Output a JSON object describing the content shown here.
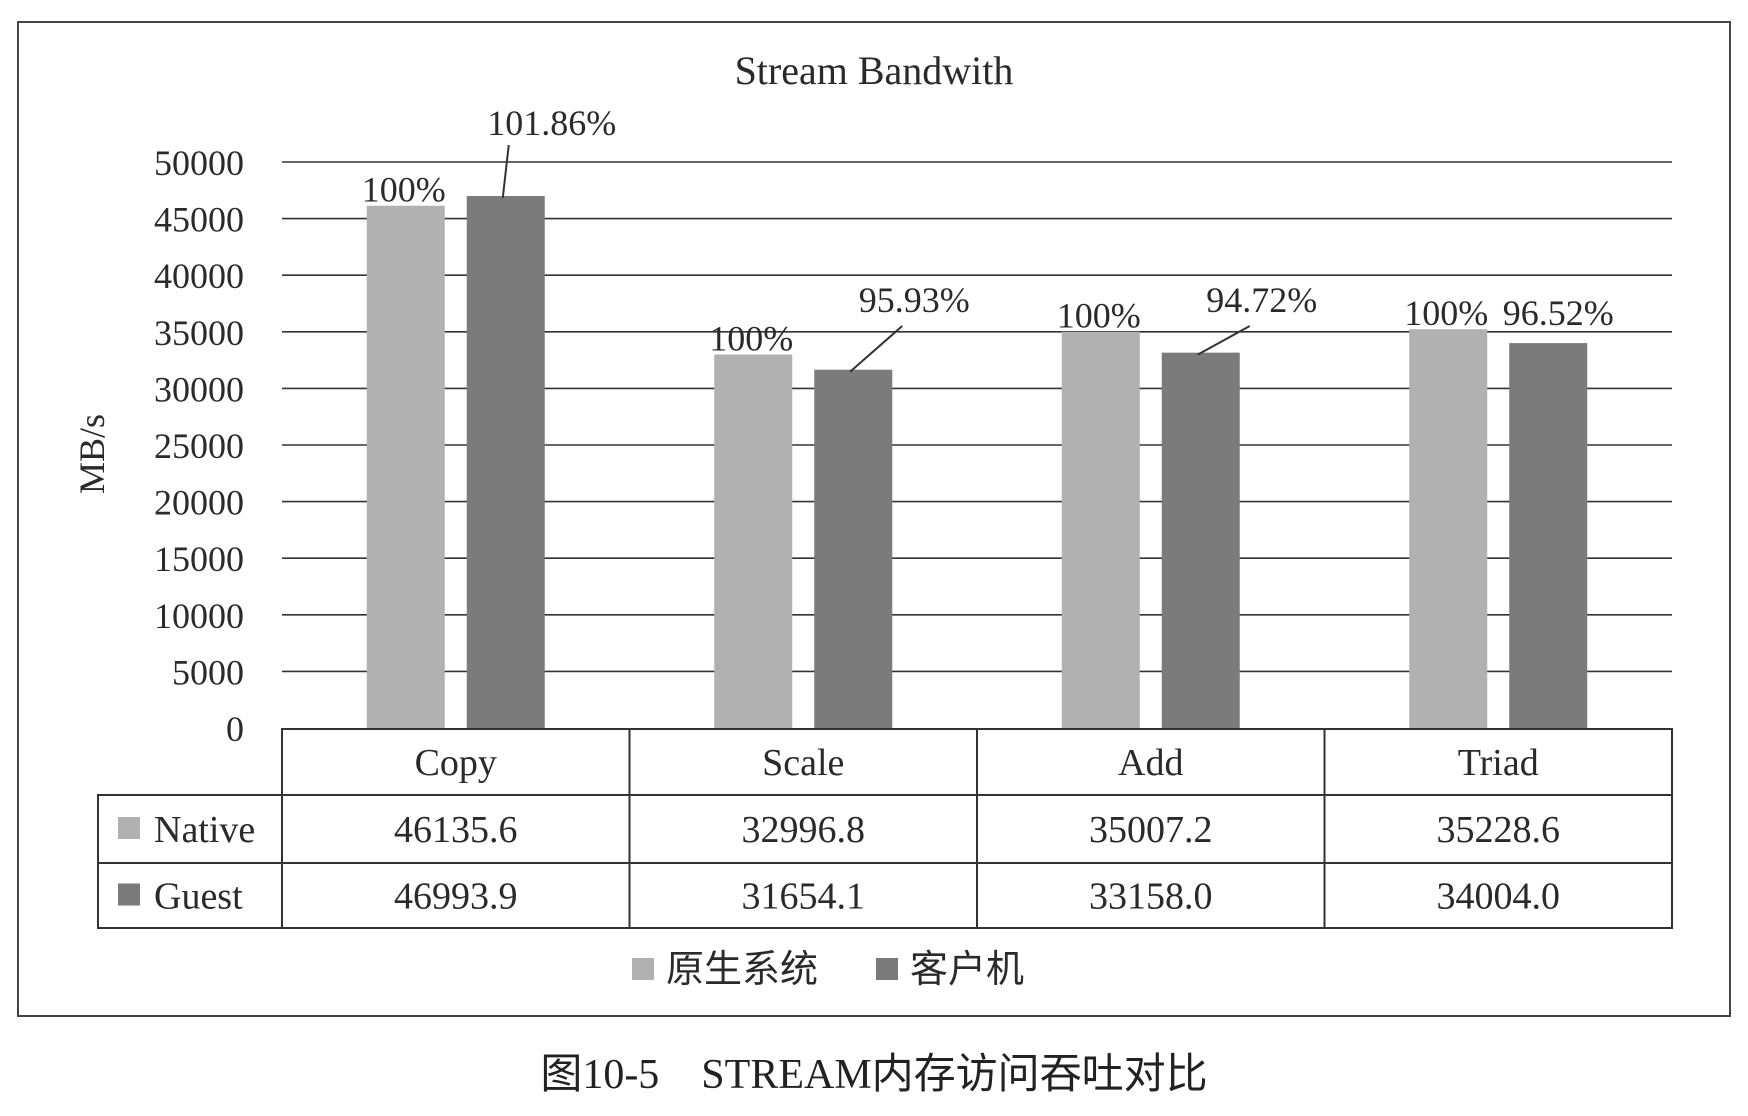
{
  "chart_data": {
    "type": "bar",
    "title": "Stream Bandwith",
    "ylabel": "MB/s",
    "ylim": [
      0,
      50000
    ],
    "yticks": [
      0,
      5000,
      10000,
      15000,
      20000,
      25000,
      30000,
      35000,
      40000,
      45000,
      50000
    ],
    "grid": true,
    "categories": [
      "Copy",
      "Scale",
      "Add",
      "Triad"
    ],
    "series": [
      {
        "name": "Native",
        "legend_label": "原生系统",
        "color": "#b1b1b1",
        "values": [
          46135.6,
          32996.8,
          35007.2,
          35228.6
        ],
        "value_labels": [
          "46135.6",
          "32996.8",
          "35007.2",
          "35228.6"
        ],
        "pct_labels": [
          "100%",
          "100%",
          "100%",
          "100%"
        ]
      },
      {
        "name": "Guest",
        "legend_label": "客户机",
        "color": "#7b7b7b",
        "values": [
          46993.9,
          31654.1,
          33158.0,
          34004.0
        ],
        "value_labels": [
          "46993.9",
          "31654.1",
          "33158.0",
          "34004.0"
        ],
        "pct_labels": [
          "101.86%",
          "95.93%",
          "94.72%",
          "96.52%"
        ]
      }
    ],
    "legend_position": "bottom"
  },
  "caption": "图10-5　STREAM内存访问吞吐对比"
}
